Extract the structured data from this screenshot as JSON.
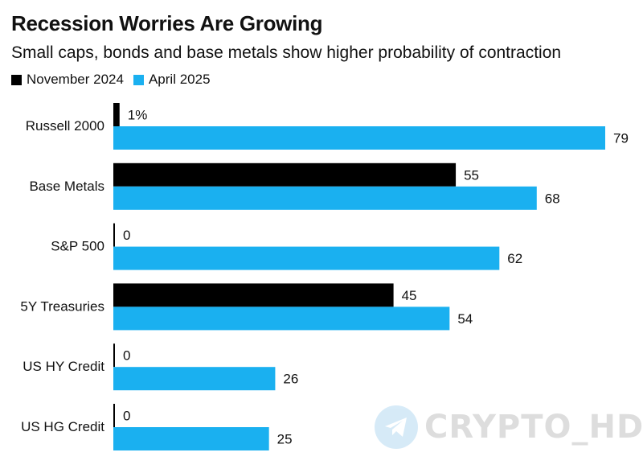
{
  "chart_data": {
    "type": "bar",
    "orientation": "horizontal",
    "title": "Recession Worries Are Growing",
    "subtitle": "Small caps, bonds and base metals show higher probability of contraction",
    "categories": [
      "Russell 2000",
      "Base Metals",
      "S&P 500",
      "5Y Treasuries",
      "US HY Credit",
      "US HG Credit"
    ],
    "series": [
      {
        "name": "November 2024",
        "color": "#000000",
        "values": [
          1,
          55,
          0,
          45,
          0,
          0
        ],
        "labels": [
          "1%",
          "55",
          "0",
          "45",
          "0",
          "0"
        ]
      },
      {
        "name": "April 2025",
        "color": "#1ab0f0",
        "values": [
          79,
          68,
          62,
          54,
          26,
          25
        ],
        "labels": [
          "79",
          "68",
          "62",
          "54",
          "26",
          "25"
        ]
      }
    ],
    "xlim": [
      0,
      80
    ],
    "grid": false,
    "legend_position": "top-left"
  },
  "watermark": {
    "text": "CRYPTO_HD",
    "icon": "telegram-icon"
  }
}
